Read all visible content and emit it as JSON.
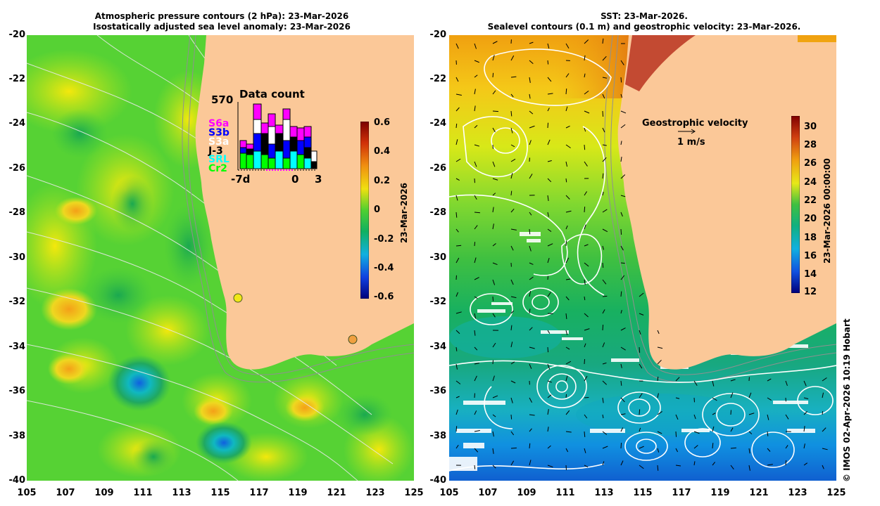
{
  "left_map": {
    "title_line1": "Atmospheric pressure contours (2 hPa): 23-Mar-2026",
    "title_line2": "Isostatically adjusted sea level anomaly: 23-Mar-2026",
    "colorbar_ticks": [
      "0.6",
      "0.4",
      "0.2",
      "0",
      "-0.2",
      "-0.4",
      "-0.6"
    ],
    "colorbar_label": "23-Mar-2026",
    "inset": {
      "title": "Data count",
      "max_label": "570",
      "x_start": "-7d",
      "x_zero": "0",
      "x_end": "3",
      "legend": [
        {
          "label": "S6a",
          "color": "#ff00ff"
        },
        {
          "label": "S3b",
          "color": "#0000ff"
        },
        {
          "label": "S3a",
          "color": "#ffffff"
        },
        {
          "label": "J-3",
          "color": "#000000"
        },
        {
          "label": "SRL",
          "color": "#00ffff"
        },
        {
          "label": "Cr2",
          "color": "#00ff00"
        }
      ]
    }
  },
  "right_map": {
    "title_line1": "SST: 23-Mar-2026.",
    "title_line2": "Sealevel contours (0.1 m) and geostrophic velocity: 23-Mar-2026.",
    "colorbar_ticks": [
      "30",
      "28",
      "26",
      "24",
      "22",
      "20",
      "18",
      "16",
      "14",
      "12"
    ],
    "colorbar_label": "23-Mar-2026 00:00:00",
    "velocity_label": "Geostrophic velocity",
    "velocity_scale": "1 m/s"
  },
  "axes": {
    "y_ticks": [
      "-20",
      "-22",
      "-24",
      "-26",
      "-28",
      "-30",
      "-32",
      "-34",
      "-36",
      "-38",
      "-40"
    ],
    "x_ticks": [
      "105",
      "107",
      "109",
      "111",
      "113",
      "115",
      "117",
      "119",
      "121",
      "123",
      "125"
    ]
  },
  "credit": "© IMOS 02-Apr-2026 10:19 Hobart",
  "colors": {
    "land": "#fbc898",
    "ocean_left": "#54d834",
    "cb_pos_top": "#7a0000",
    "cb_neg_bottom": "#00007a"
  }
}
